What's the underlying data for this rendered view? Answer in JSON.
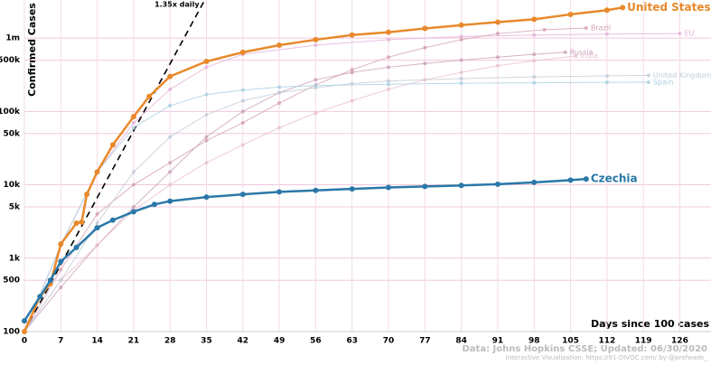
{
  "chart_data": {
    "type": "line",
    "y_label": "Confirmed Cases",
    "x_label": "Days since 100 cases",
    "source": "Data: Johns Hopkins CSSE; Updated: 06/30/2020",
    "credit": "Interactive Visualization: https://91-DIVOC.com/ by @profwade_",
    "log_scale_y": true,
    "grid": true,
    "xlim": [
      0,
      132
    ],
    "xticks": [
      0,
      7,
      14,
      21,
      28,
      35,
      42,
      49,
      56,
      63,
      70,
      77,
      84,
      91,
      98,
      105,
      112,
      119,
      126
    ],
    "ylim": [
      100,
      3300000
    ],
    "yticks": [
      100,
      500,
      {
        "value": 1000,
        "label": "1k"
      },
      {
        "value": 5000,
        "label": "5k"
      },
      {
        "value": 10000,
        "label": "10k"
      },
      {
        "value": 50000,
        "label": "50k"
      },
      {
        "value": 100000,
        "label": "100k"
      },
      {
        "value": 500000,
        "label": "500k"
      },
      {
        "value": 1000000,
        "label": "1m"
      }
    ],
    "reference_line": {
      "label": "1.35x daily",
      "start": 100,
      "factor": 1.35,
      "color": "#000000"
    },
    "series": [
      {
        "name": "EU",
        "color": "#e3b0d8",
        "highlight": false,
        "x": [
          0,
          7,
          14,
          21,
          28,
          35,
          42,
          56,
          70,
          84,
          98,
          112,
          126
        ],
        "values": [
          100,
          1500,
          15000,
          70000,
          200000,
          400000,
          600000,
          800000,
          950000,
          1050000,
          1100000,
          1130000,
          1150000
        ]
      },
      {
        "name": "Brazil",
        "color": "#d4a0b0",
        "highlight": false,
        "x": [
          0,
          7,
          14,
          21,
          28,
          35,
          42,
          49,
          56,
          63,
          70,
          77,
          84,
          91,
          100,
          108
        ],
        "values": [
          100,
          700,
          4000,
          10000,
          20000,
          40000,
          70000,
          130000,
          230000,
          370000,
          550000,
          740000,
          950000,
          1150000,
          1300000,
          1370000
        ]
      },
      {
        "name": "Russia",
        "color": "#c9a0b8",
        "highlight": false,
        "x": [
          0,
          7,
          14,
          21,
          28,
          35,
          42,
          49,
          56,
          63,
          70,
          77,
          84,
          91,
          98,
          104
        ],
        "values": [
          100,
          400,
          1500,
          5000,
          15000,
          45000,
          100000,
          180000,
          270000,
          340000,
          400000,
          450000,
          500000,
          550000,
          600000,
          640000
        ]
      },
      {
        "name": "India",
        "color": "#e8c0d0",
        "highlight": false,
        "x": [
          0,
          7,
          14,
          21,
          28,
          35,
          42,
          49,
          56,
          63,
          70,
          77,
          84,
          91,
          98,
          106
        ],
        "values": [
          100,
          500,
          1500,
          4500,
          10000,
          20000,
          35000,
          60000,
          95000,
          140000,
          200000,
          270000,
          340000,
          420000,
          490000,
          570000
        ]
      },
      {
        "name": "United Kingdom",
        "color": "#c0ccd8",
        "highlight": false,
        "x": [
          0,
          7,
          14,
          21,
          28,
          35,
          42,
          49,
          56,
          63,
          70,
          84,
          98,
          112,
          120
        ],
        "values": [
          100,
          500,
          3000,
          15000,
          45000,
          90000,
          140000,
          180000,
          210000,
          240000,
          260000,
          280000,
          295000,
          305000,
          311000
        ]
      },
      {
        "name": "Spain",
        "color": "#a8d0e0",
        "highlight": false,
        "x": [
          0,
          7,
          14,
          21,
          28,
          35,
          42,
          49,
          56,
          70,
          84,
          98,
          112,
          120
        ],
        "values": [
          100,
          1500,
          15000,
          60000,
          120000,
          170000,
          195000,
          215000,
          225000,
          235000,
          242000,
          246000,
          249000,
          250000
        ]
      },
      {
        "name": "United States",
        "color": "#e8892b",
        "highlight": true,
        "x": [
          0,
          3,
          5,
          7,
          10,
          11,
          12,
          14,
          17,
          21,
          24,
          28,
          35,
          42,
          49,
          56,
          63,
          70,
          77,
          84,
          91,
          98,
          105,
          112,
          115
        ],
        "values": [
          100,
          300,
          450,
          1560,
          3000,
          3100,
          7400,
          15000,
          35000,
          85000,
          160000,
          300000,
          480000,
          640000,
          800000,
          950000,
          1100000,
          1200000,
          1350000,
          1500000,
          1650000,
          1800000,
          2100000,
          2400000,
          2600000
        ]
      },
      {
        "name": "Czechia",
        "color": "#2a78a8",
        "highlight": true,
        "x": [
          0,
          3,
          5,
          7,
          10,
          14,
          17,
          21,
          25,
          28,
          35,
          42,
          49,
          56,
          63,
          70,
          77,
          84,
          91,
          98,
          105,
          108
        ],
        "values": [
          140,
          300,
          500,
          900,
          1400,
          2600,
          3300,
          4300,
          5400,
          6000,
          6800,
          7400,
          8000,
          8400,
          8800,
          9200,
          9500,
          9800,
          10200,
          10800,
          11600,
          12000
        ]
      }
    ]
  }
}
